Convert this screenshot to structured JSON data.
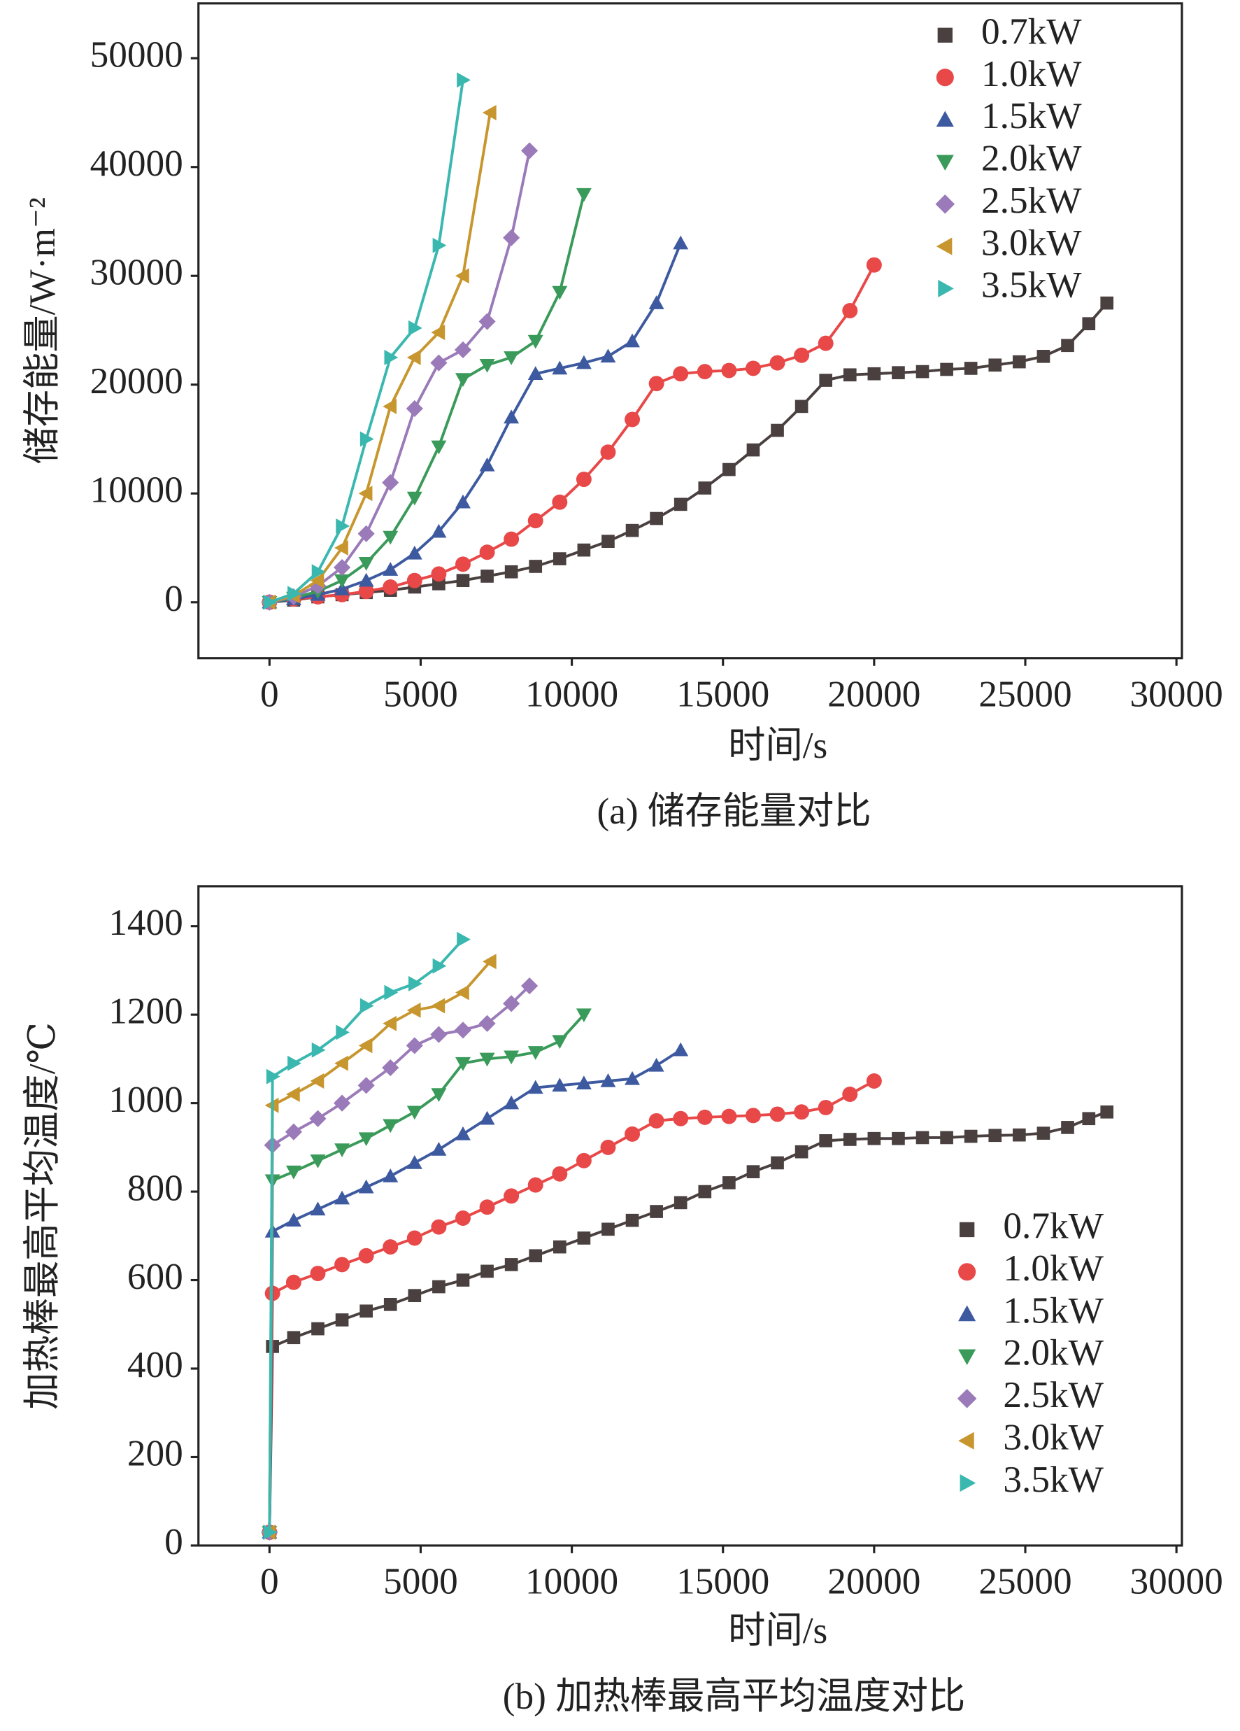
{
  "chart_data": [
    {
      "type": "line",
      "caption": "(a) 储存能量对比",
      "x_label": "时间/s",
      "y_label": "储存能量/W·m⁻²",
      "xlim": [
        -2350,
        30180
      ],
      "xticks": [
        0,
        5000,
        10000,
        15000,
        20000,
        25000,
        30000
      ],
      "ylim": [
        -5140,
        55040
      ],
      "yticks": [
        0,
        10000,
        20000,
        30000,
        40000,
        50000
      ],
      "legend": "upper right",
      "series": [
        {
          "name": "0.7kW",
          "color": "#4a4040",
          "marker": "square",
          "x": [
            0,
            800,
            1600,
            2400,
            3200,
            4000,
            4800,
            5600,
            6400,
            7200,
            8000,
            8800,
            9600,
            10400,
            11200,
            12000,
            12800,
            13600,
            14400,
            15200,
            16000,
            16800,
            17600,
            18400,
            19200,
            20000,
            20800,
            21600,
            22400,
            23200,
            24000,
            24800,
            25600,
            26400,
            27100,
            27700
          ],
          "values": [
            0,
            200,
            500,
            700,
            900,
            1100,
            1400,
            1700,
            2000,
            2400,
            2800,
            3300,
            4000,
            4800,
            5600,
            6600,
            7700,
            9000,
            10500,
            12200,
            14000,
            15800,
            18000,
            20400,
            20900,
            21000,
            21100,
            21200,
            21400,
            21500,
            21800,
            22100,
            22600,
            23600,
            25600,
            27500
          ]
        },
        {
          "name": "1.0kW",
          "color": "#e84848",
          "marker": "circle",
          "x": [
            0,
            800,
            1600,
            2400,
            3200,
            4000,
            4800,
            5600,
            6400,
            7200,
            8000,
            8800,
            9600,
            10400,
            11200,
            12000,
            12800,
            13600,
            14400,
            15200,
            16000,
            16800,
            17600,
            18400,
            19200,
            20000
          ],
          "values": [
            0,
            300,
            500,
            700,
            1000,
            1400,
            2000,
            2600,
            3500,
            4600,
            5800,
            7500,
            9200,
            11300,
            13800,
            16800,
            20100,
            21000,
            21200,
            21300,
            21500,
            22000,
            22700,
            23800,
            26800,
            31000
          ]
        },
        {
          "name": "1.5kW",
          "color": "#3d5aa0",
          "marker": "triangle-up",
          "x": [
            0,
            800,
            1600,
            2400,
            3200,
            4000,
            4800,
            5600,
            6400,
            7200,
            8000,
            8800,
            9600,
            10400,
            11200,
            12000,
            12800,
            13600
          ],
          "values": [
            0,
            300,
            700,
            1200,
            2000,
            3000,
            4500,
            6500,
            9200,
            12600,
            17000,
            21000,
            21500,
            22000,
            22600,
            24000,
            27500,
            33000
          ]
        },
        {
          "name": "2.0kW",
          "color": "#3a9a5a",
          "marker": "triangle-down",
          "x": [
            0,
            800,
            1600,
            2400,
            3200,
            4000,
            4800,
            5600,
            6400,
            7200,
            8000,
            8800,
            9600,
            10400
          ],
          "values": [
            0,
            400,
            1000,
            2000,
            3600,
            6000,
            9600,
            14300,
            20500,
            21800,
            22500,
            24000,
            28500,
            37500
          ]
        },
        {
          "name": "2.5kW",
          "color": "#9a7ab8",
          "marker": "diamond",
          "x": [
            0,
            800,
            1600,
            2400,
            3200,
            4000,
            4800,
            5600,
            6400,
            7200,
            8000,
            8600
          ],
          "values": [
            0,
            500,
            1500,
            3200,
            6300,
            11000,
            17800,
            22000,
            23200,
            25800,
            33500,
            41500
          ]
        },
        {
          "name": "3.0kW",
          "color": "#c8962e",
          "marker": "triangle-left",
          "x": [
            0,
            800,
            1600,
            2400,
            3200,
            4000,
            4800,
            5600,
            6400,
            7300
          ],
          "values": [
            0,
            600,
            2000,
            5000,
            10000,
            18000,
            22500,
            24800,
            30000,
            45000
          ]
        },
        {
          "name": "3.5kW",
          "color": "#3ab8b0",
          "marker": "triangle-right",
          "x": [
            0,
            800,
            1600,
            2400,
            3200,
            4000,
            4800,
            5600,
            6400
          ],
          "values": [
            0,
            800,
            2800,
            7000,
            15000,
            22500,
            25200,
            32800,
            48000
          ]
        }
      ]
    },
    {
      "type": "line",
      "caption": "(b) 加热棒最高平均温度对比",
      "x_label": "时间/s",
      "y_label": "加热棒最高平均温度/℃",
      "xlim": [
        -2350,
        30180
      ],
      "xticks": [
        0,
        5000,
        10000,
        15000,
        20000,
        25000,
        30000
      ],
      "ylim": [
        0,
        1490
      ],
      "yticks": [
        0,
        200,
        400,
        600,
        800,
        1000,
        1200,
        1400
      ],
      "legend": "lower right",
      "series": [
        {
          "name": "0.7kW",
          "color": "#4a4040",
          "marker": "square",
          "x": [
            0,
            100,
            800,
            1600,
            2400,
            3200,
            4000,
            4800,
            5600,
            6400,
            7200,
            8000,
            8800,
            9600,
            10400,
            11200,
            12000,
            12800,
            13600,
            14400,
            15200,
            16000,
            16800,
            17600,
            18400,
            19200,
            20000,
            20800,
            21600,
            22400,
            23200,
            24000,
            24800,
            25600,
            26400,
            27100,
            27700
          ],
          "values": [
            30,
            450,
            470,
            490,
            510,
            530,
            545,
            565,
            585,
            600,
            620,
            635,
            655,
            675,
            695,
            715,
            735,
            755,
            775,
            800,
            820,
            845,
            865,
            890,
            915,
            918,
            920,
            920,
            922,
            922,
            925,
            927,
            928,
            932,
            945,
            965,
            980
          ]
        },
        {
          "name": "1.0kW",
          "color": "#e84848",
          "marker": "circle",
          "x": [
            0,
            100,
            800,
            1600,
            2400,
            3200,
            4000,
            4800,
            5600,
            6400,
            7200,
            8000,
            8800,
            9600,
            10400,
            11200,
            12000,
            12800,
            13600,
            14400,
            15200,
            16000,
            16800,
            17600,
            18400,
            19200,
            20000
          ],
          "values": [
            30,
            570,
            595,
            615,
            635,
            655,
            675,
            695,
            720,
            740,
            765,
            790,
            815,
            840,
            870,
            900,
            930,
            960,
            965,
            968,
            970,
            972,
            975,
            980,
            990,
            1020,
            1050
          ]
        },
        {
          "name": "1.5kW",
          "color": "#3d5aa0",
          "marker": "triangle-up",
          "x": [
            0,
            100,
            800,
            1600,
            2400,
            3200,
            4000,
            4800,
            5600,
            6400,
            7200,
            8000,
            8800,
            9600,
            10400,
            11200,
            12000,
            12800,
            13600
          ],
          "values": [
            30,
            710,
            735,
            760,
            785,
            810,
            835,
            865,
            895,
            930,
            965,
            1000,
            1035,
            1040,
            1045,
            1050,
            1055,
            1085,
            1120
          ]
        },
        {
          "name": "2.0kW",
          "color": "#3a9a5a",
          "marker": "triangle-down",
          "x": [
            0,
            100,
            800,
            1600,
            2400,
            3200,
            4000,
            4800,
            5600,
            6400,
            7200,
            8000,
            8800,
            9600,
            10400
          ],
          "values": [
            30,
            825,
            845,
            870,
            895,
            920,
            950,
            980,
            1020,
            1090,
            1100,
            1105,
            1115,
            1140,
            1200
          ]
        },
        {
          "name": "2.5kW",
          "color": "#9a7ab8",
          "marker": "diamond",
          "x": [
            0,
            100,
            800,
            1600,
            2400,
            3200,
            4000,
            4800,
            5600,
            6400,
            7200,
            8000,
            8600
          ],
          "values": [
            30,
            905,
            935,
            965,
            1000,
            1040,
            1080,
            1130,
            1155,
            1165,
            1180,
            1225,
            1265
          ]
        },
        {
          "name": "3.0kW",
          "color": "#c8962e",
          "marker": "triangle-left",
          "x": [
            0,
            100,
            800,
            1600,
            2400,
            3200,
            4000,
            4800,
            5600,
            6400,
            7300
          ],
          "values": [
            30,
            995,
            1020,
            1050,
            1090,
            1130,
            1180,
            1210,
            1220,
            1250,
            1320
          ]
        },
        {
          "name": "3.5kW",
          "color": "#3ab8b0",
          "marker": "triangle-right",
          "x": [
            0,
            100,
            800,
            1600,
            2400,
            3200,
            4000,
            4800,
            5600,
            6400
          ],
          "values": [
            30,
            1060,
            1090,
            1120,
            1160,
            1220,
            1250,
            1270,
            1310,
            1370
          ]
        }
      ]
    }
  ]
}
